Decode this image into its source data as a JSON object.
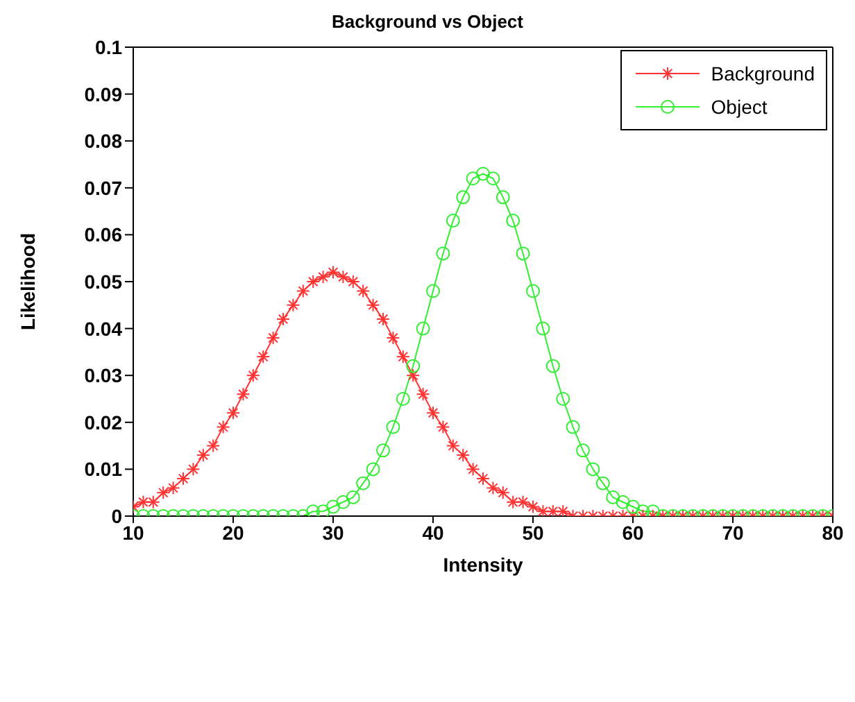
{
  "chart_data": {
    "type": "line",
    "title": "Background vs Object",
    "xlabel": "Intensity",
    "ylabel": "Likelihood",
    "x": [
      10,
      11,
      12,
      13,
      14,
      15,
      16,
      17,
      18,
      19,
      20,
      21,
      22,
      23,
      24,
      25,
      26,
      27,
      28,
      29,
      30,
      31,
      32,
      33,
      34,
      35,
      36,
      37,
      38,
      39,
      40,
      41,
      42,
      43,
      44,
      45,
      46,
      47,
      48,
      49,
      50,
      51,
      52,
      53,
      54,
      55,
      56,
      57,
      58,
      59,
      60,
      61,
      62,
      63,
      64,
      65,
      66,
      67,
      68,
      69,
      70,
      71,
      72,
      73,
      74,
      75,
      76,
      77,
      78,
      79,
      80
    ],
    "series": [
      {
        "name": "Background",
        "color": "#ff3333",
        "marker": "cross",
        "values": [
          0.002,
          0.003,
          0.003,
          0.005,
          0.006,
          0.008,
          0.01,
          0.013,
          0.015,
          0.019,
          0.022,
          0.026,
          0.03,
          0.034,
          0.038,
          0.042,
          0.045,
          0.048,
          0.05,
          0.051,
          0.052,
          0.051,
          0.05,
          0.048,
          0.045,
          0.042,
          0.038,
          0.034,
          0.03,
          0.026,
          0.022,
          0.019,
          0.015,
          0.013,
          0.01,
          0.008,
          0.006,
          0.005,
          0.003,
          0.003,
          0.002,
          0.001,
          0.001,
          0.001,
          0,
          0,
          0,
          0,
          0,
          0,
          0,
          0,
          0,
          0,
          0,
          0,
          0,
          0,
          0,
          0,
          0,
          0,
          0,
          0,
          0,
          0,
          0,
          0,
          0,
          0,
          0
        ]
      },
      {
        "name": "Object",
        "color": "#33ee33",
        "marker": "circle",
        "values": [
          0,
          0,
          0,
          0,
          0,
          0,
          0,
          0,
          0,
          0,
          0,
          0,
          0,
          0,
          0,
          0,
          0,
          0,
          0.001,
          0.001,
          0.002,
          0.003,
          0.004,
          0.007,
          0.01,
          0.014,
          0.019,
          0.025,
          0.032,
          0.04,
          0.048,
          0.056,
          0.063,
          0.068,
          0.072,
          0.073,
          0.072,
          0.068,
          0.063,
          0.056,
          0.048,
          0.04,
          0.032,
          0.025,
          0.019,
          0.014,
          0.01,
          0.007,
          0.004,
          0.003,
          0.002,
          0.001,
          0.001,
          0,
          0,
          0,
          0,
          0,
          0,
          0,
          0,
          0,
          0,
          0,
          0,
          0,
          0,
          0,
          0,
          0,
          0
        ]
      }
    ],
    "xlim": [
      10,
      80
    ],
    "xticks": [
      10,
      20,
      30,
      40,
      50,
      60,
      70,
      80
    ],
    "ylim": [
      0,
      0.1
    ],
    "yticks": [
      0,
      0.01,
      0.02,
      0.03,
      0.04,
      0.05,
      0.06,
      0.07,
      0.08,
      0.09,
      0.1
    ],
    "legend": "top right",
    "line_style": "solid"
  }
}
